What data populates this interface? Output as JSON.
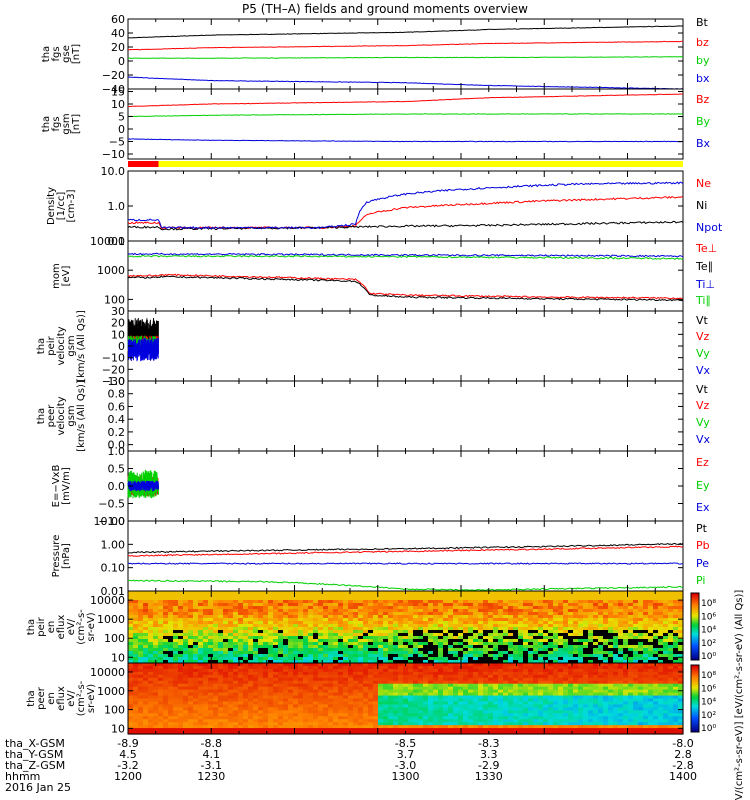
{
  "title": "P5 (TH–A) fields and ground moments overview",
  "colors": {
    "black": "#000000",
    "red": "#ff0000",
    "green": "#00d000",
    "blue": "#0000dd",
    "yellow": "#ffff00"
  },
  "mode_bar": {
    "label_left": "",
    "segments": [
      {
        "from": 1200,
        "to": 1211,
        "color": "red"
      },
      {
        "from": 1211,
        "to": 1400,
        "color": "yellow"
      }
    ]
  },
  "chart_data": {
    "type": "line",
    "time_axis": {
      "tick_labels_hhmm": [
        "1200",
        "1230",
        "1300",
        "1330",
        "1400"
      ],
      "x_gsm": [
        "-8.9",
        "-8.8",
        "-8.5",
        "-8.3",
        "-8.0"
      ],
      "y_gsm": [
        "4.5",
        "4.1",
        "3.7",
        "3.3",
        "2.8"
      ],
      "z_gsm": [
        "-3.2",
        "-3.1",
        "-3.0",
        "-2.9",
        "-2.8"
      ],
      "row_labels": [
        "tha_X-GSM",
        "tha_Y-GSM",
        "tha_Z-GSM",
        "hhmm"
      ],
      "date": "2016 Jan 25"
    },
    "panels": [
      {
        "id": "fgs_gse",
        "ylabel": [
          "tha",
          "fgs",
          "gse",
          "[nT]"
        ],
        "ylim": [
          -40,
          60
        ],
        "yticks": [
          "60",
          "40",
          "20",
          "0",
          "−20",
          "−40"
        ],
        "ytick_values": [
          60,
          40,
          20,
          0,
          -20,
          -40
        ],
        "series": [
          {
            "name": "Bt",
            "color": "black",
            "t": [
              1200,
              1230,
              1300,
              1330,
              1400
            ],
            "y": [
              33,
              37,
              41,
              45,
              50
            ]
          },
          {
            "name": "bz",
            "color": "red",
            "t": [
              1200,
              1230,
              1300,
              1330,
              1400
            ],
            "y": [
              16,
              19,
              22,
              25,
              28
            ]
          },
          {
            "name": "by",
            "color": "green",
            "t": [
              1200,
              1230,
              1300,
              1330,
              1400
            ],
            "y": [
              4,
              4,
              5,
              5,
              6
            ]
          },
          {
            "name": "bx",
            "color": "blue",
            "t": [
              1200,
              1230,
              1300,
              1330,
              1400
            ],
            "y": [
              -23,
              -28,
              -31,
              -35,
              -40
            ]
          }
        ]
      },
      {
        "id": "fgs_gsm",
        "ylabel": [
          "tha",
          "fgs",
          "gsm",
          "[nT]"
        ],
        "ylim": [
          -12,
          16
        ],
        "yticks": [
          "15",
          "10",
          "5",
          "0",
          "−5",
          "−10"
        ],
        "ytick_values": [
          15,
          10,
          5,
          0,
          -5,
          -10
        ],
        "series": [
          {
            "name": "Bz",
            "color": "red",
            "t": [
              1200,
              1230,
              1300,
              1330,
              1400
            ],
            "y": [
              9,
              10,
              11,
              12.5,
              14
            ]
          },
          {
            "name": "By",
            "color": "green",
            "t": [
              1200,
              1230,
              1300,
              1330,
              1400
            ],
            "y": [
              5,
              5.5,
              6,
              6,
              6
            ]
          },
          {
            "name": "Bx",
            "color": "blue",
            "t": [
              1200,
              1230,
              1300,
              1330,
              1400
            ],
            "y": [
              -4,
              -4.5,
              -5,
              -5,
              -5
            ]
          }
        ]
      },
      {
        "id": "density",
        "ylabel": [
          "Density",
          "[1/cc]",
          "[cm-3]"
        ],
        "log": true,
        "ylim": [
          0.1,
          10
        ],
        "yticks": [
          "10.0",
          "1.0",
          "0.1"
        ],
        "ytick_values": [
          10,
          1,
          0.1
        ],
        "series": [
          {
            "name": "Ne",
            "color": "red",
            "t": [
              1200,
              1211,
              1212,
              1270,
              1282,
              1287,
              1300,
              1330,
              1350,
              1400
            ],
            "y": [
              0.33,
              0.33,
              0.24,
              0.24,
              0.27,
              0.6,
              0.9,
              1.2,
              1.4,
              1.8
            ]
          },
          {
            "name": "Ni",
            "color": "black",
            "t": [
              1200,
              1211,
              1212,
              1270,
              1290,
              1330,
              1400
            ],
            "y": [
              0.25,
              0.25,
              0.22,
              0.24,
              0.26,
              0.28,
              0.35
            ]
          },
          {
            "name": "Npot",
            "color": "blue",
            "t": [
              1200,
              1211,
              1212,
              1270,
              1282,
              1286,
              1300,
              1320,
              1340,
              1360,
              1400
            ],
            "y": [
              0.4,
              0.4,
              0.24,
              0.24,
              0.3,
              1.3,
              2.2,
              3.0,
              3.6,
              4.2,
              4.6
            ]
          }
        ]
      },
      {
        "id": "temperature",
        "ylabel": [
          "mom",
          "[eV]"
        ],
        "log": true,
        "ylim": [
          40,
          10000
        ],
        "yticks": [
          "10000",
          "1000",
          "100"
        ],
        "ytick_values": [
          10000,
          1000,
          100
        ],
        "series": [
          {
            "name": "Te⊥",
            "color": "red",
            "t": [
              1200,
              1211,
              1212,
              1282,
              1287,
              1300,
              1350,
              1400
            ],
            "y": [
              650,
              650,
              700,
              480,
              160,
              140,
              120,
              110
            ]
          },
          {
            "name": "Te∥",
            "color": "black",
            "t": [
              1200,
              1211,
              1212,
              1282,
              1287,
              1300,
              1350,
              1400
            ],
            "y": [
              560,
              560,
              600,
              420,
              140,
              120,
              105,
              95
            ]
          },
          {
            "name": "Ti⊥",
            "color": "blue",
            "t": [
              1200,
              1250,
              1300,
              1350,
              1400
            ],
            "y": [
              3600,
              3500,
              3300,
              3200,
              3000
            ]
          },
          {
            "name": "Ti∥",
            "color": "green",
            "t": [
              1200,
              1250,
              1300,
              1350,
              1400
            ],
            "y": [
              3000,
              3000,
              2900,
              2700,
              2500
            ]
          }
        ]
      },
      {
        "id": "peir_velocity",
        "ylabel": [
          "tha",
          "peir",
          "velocity",
          "gsm",
          "[km/s (All Qs)]"
        ],
        "ylim": [
          -30,
          30
        ],
        "yticks": [
          "30",
          "20",
          "10",
          "0",
          "−10",
          "−20",
          "−30"
        ],
        "ytick_values": [
          30,
          20,
          10,
          0,
          -10,
          -20,
          -30
        ],
        "data_span": [
          1200,
          1211
        ],
        "series": [
          {
            "name": "Vt",
            "color": "black",
            "mean": 12,
            "spread": 12
          },
          {
            "name": "Vz",
            "color": "red",
            "mean": 1,
            "spread": 8
          },
          {
            "name": "Vy",
            "color": "green",
            "mean": 2,
            "spread": 7
          },
          {
            "name": "Vx",
            "color": "blue",
            "mean": -3,
            "spread": 10
          }
        ]
      },
      {
        "id": "peer_velocity",
        "ylabel": [
          "tha",
          "peer",
          "velocity",
          "gsm",
          "[km/s (All Qs)]"
        ],
        "ylim": [
          -0.1,
          1.0
        ],
        "yticks": [
          "1.0",
          "0.8",
          "0.6",
          "0.4",
          "0.2",
          "0.0"
        ],
        "ytick_values": [
          1.0,
          0.8,
          0.6,
          0.4,
          0.2,
          0.0
        ],
        "series": [
          {
            "name": "Vt",
            "color": "black"
          },
          {
            "name": "Vz",
            "color": "red"
          },
          {
            "name": "Vy",
            "color": "green"
          },
          {
            "name": "Vx",
            "color": "blue"
          }
        ]
      },
      {
        "id": "e_field",
        "ylabel": [
          "E=−VxB",
          "[mV/m]"
        ],
        "ylim": [
          -1.0,
          1.0
        ],
        "yticks": [
          "1.0",
          "0.5",
          "0.0",
          "−0.5",
          "−1.0"
        ],
        "ytick_values": [
          1.0,
          0.5,
          0.0,
          -0.5,
          -1.0
        ],
        "data_span": [
          1200,
          1211
        ],
        "series": [
          {
            "name": "Ez",
            "color": "red",
            "mean": 0,
            "spread": 0.3
          },
          {
            "name": "Ey",
            "color": "green",
            "mean": 0.05,
            "spread": 0.4
          },
          {
            "name": "Ex",
            "color": "blue",
            "mean": 0,
            "spread": 0.15
          }
        ]
      },
      {
        "id": "pressure",
        "ylabel": [
          "Pressure",
          "[nPa]"
        ],
        "log": true,
        "ylim": [
          0.01,
          10
        ],
        "yticks": [
          "10.00",
          "1.00",
          "0.10",
          "0.01"
        ],
        "ytick_values": [
          10,
          1,
          0.1,
          0.01
        ],
        "series": [
          {
            "name": "Pt",
            "color": "black",
            "t": [
              1200,
              1250,
              1300,
              1350,
              1400
            ],
            "y": [
              0.45,
              0.55,
              0.65,
              0.8,
              1.05
            ]
          },
          {
            "name": "Pb",
            "color": "red",
            "t": [
              1200,
              1250,
              1300,
              1350,
              1400
            ],
            "y": [
              0.32,
              0.4,
              0.5,
              0.62,
              0.8
            ]
          },
          {
            "name": "Pe",
            "color": "blue",
            "t": [
              1200,
              1300,
              1400
            ],
            "y": [
              0.15,
              0.15,
              0.15
            ]
          },
          {
            "name": "Pi",
            "color": "green",
            "t": [
              1200,
              1250,
              1300,
              1330,
              1400
            ],
            "y": [
              0.028,
              0.025,
              0.012,
              0.011,
              0.015
            ]
          }
        ]
      }
    ],
    "spectrograms": [
      {
        "id": "peir_eflux",
        "ylabel": [
          "tha",
          "peir",
          "en",
          "eflux",
          "eV/",
          "(cm²-s-",
          "sr-eV)"
        ],
        "log": true,
        "ylim": [
          5,
          30000
        ],
        "yticks": [
          "10000",
          "1000",
          "100",
          "10"
        ],
        "ytick_values": [
          10000,
          1000,
          100,
          10
        ]
      },
      {
        "id": "peer_eflux",
        "ylabel": [
          "tha",
          "peer",
          "en",
          "eflux",
          "eV/",
          "(cm²-s-",
          "sr-eV)"
        ],
        "log": true,
        "ylim": [
          5,
          30000
        ],
        "yticks": [
          "10000",
          "1000",
          "100",
          "10"
        ],
        "ytick_values": [
          10000,
          1000,
          100,
          10
        ]
      }
    ],
    "colorbar": {
      "label": "[eV/(cm²-s-sr-eV)] [eV/(cm²-s-sr-eV) (All Qs)]",
      "ticks_upper": [
        "10⁸",
        "10⁶",
        "10⁴",
        "10²",
        "10⁰"
      ],
      "ticks_lower": [
        "10⁸",
        "10⁶",
        "10⁴",
        "10²",
        "10⁰"
      ]
    }
  }
}
